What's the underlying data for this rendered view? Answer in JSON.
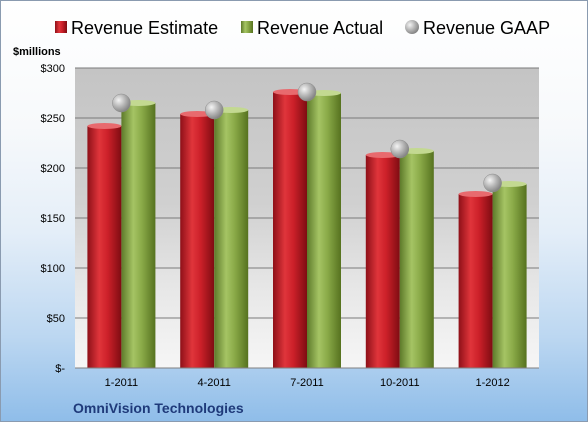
{
  "chart_data": {
    "type": "bar",
    "unit_label": "$millions",
    "source_label": "OmniVision Technologies",
    "categories": [
      "1-2011",
      "4-2011",
      "7-2011",
      "10-2011",
      "1-2012"
    ],
    "y_ticks": [
      {
        "value": 0,
        "label": "$-"
      },
      {
        "value": 50,
        "label": "$50"
      },
      {
        "value": 100,
        "label": "$100"
      },
      {
        "value": 150,
        "label": "$150"
      },
      {
        "value": 200,
        "label": "$200"
      },
      {
        "value": 250,
        "label": "$250"
      },
      {
        "value": 300,
        "label": "$300"
      }
    ],
    "ylim": [
      0,
      300
    ],
    "grid": true,
    "legend_position": "top",
    "series": [
      {
        "name": "Revenue Estimate",
        "kind": "bar",
        "color": "#c8202a",
        "values": [
          242,
          254,
          276,
          213,
          174
        ]
      },
      {
        "name": "Revenue Actual",
        "kind": "bar",
        "color": "#8aaa4a",
        "values": [
          265,
          258,
          275,
          217,
          184
        ]
      },
      {
        "name": "Revenue GAAP",
        "kind": "marker",
        "color": "#a8a8a8",
        "values": [
          265,
          258,
          276,
          219,
          185
        ]
      }
    ]
  }
}
